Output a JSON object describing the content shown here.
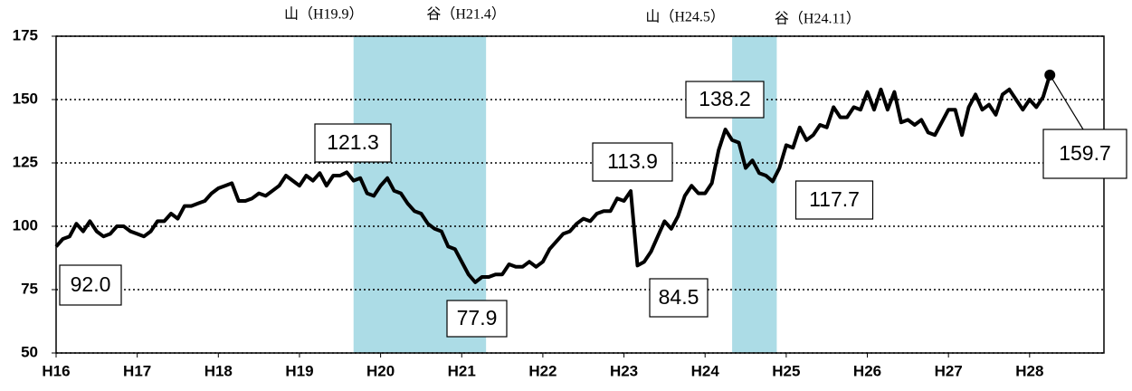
{
  "chart_data": {
    "type": "line",
    "categories": [
      "H16",
      null,
      null,
      null,
      null,
      null,
      null,
      null,
      null,
      null,
      null,
      null,
      "H17",
      null,
      null,
      null,
      null,
      null,
      null,
      null,
      null,
      null,
      null,
      null,
      "H18",
      null,
      null,
      null,
      null,
      null,
      null,
      null,
      null,
      null,
      null,
      null,
      "H19",
      null,
      null,
      null,
      null,
      null,
      null,
      null,
      null,
      null,
      null,
      null,
      "H20",
      null,
      null,
      null,
      null,
      null,
      null,
      null,
      null,
      null,
      null,
      null,
      "H21",
      null,
      null,
      null,
      null,
      null,
      null,
      null,
      null,
      null,
      null,
      null,
      "H22",
      null,
      null,
      null,
      null,
      null,
      null,
      null,
      null,
      null,
      null,
      null,
      "H23",
      null,
      null,
      null,
      null,
      null,
      null,
      null,
      null,
      null,
      null,
      null,
      "H24",
      null,
      null,
      null,
      null,
      null,
      null,
      null,
      null,
      null,
      null,
      null,
      "H25",
      null,
      null,
      null,
      null,
      null,
      null,
      null,
      null,
      null,
      null,
      null,
      "H26",
      null,
      null,
      null,
      null,
      null,
      null,
      null,
      null,
      null,
      null,
      null,
      "H27",
      null,
      null,
      null,
      null,
      null,
      null,
      null,
      null,
      null,
      null,
      null,
      "H28",
      null,
      null,
      null
    ],
    "values": [
      92,
      95,
      96,
      101,
      98,
      102,
      98,
      96,
      97,
      100,
      100,
      98,
      97,
      96,
      98,
      102,
      102,
      105,
      103,
      108,
      108,
      109,
      110,
      113,
      115,
      116,
      117,
      110,
      110,
      111,
      113,
      112,
      114,
      116,
      120,
      118,
      116,
      120,
      118,
      121,
      116,
      120,
      120,
      121.3,
      118,
      119,
      113,
      112,
      116,
      119,
      114,
      113,
      109,
      106,
      105,
      101,
      99,
      98,
      92,
      91,
      86,
      81,
      77.9,
      80,
      80,
      81,
      81,
      85,
      84,
      84,
      86,
      84,
      86,
      91,
      94,
      97,
      98,
      101,
      103,
      102,
      105,
      106,
      106,
      111,
      110,
      113.9,
      84.5,
      86,
      90,
      96,
      102,
      99,
      104,
      112,
      116,
      113,
      113,
      117,
      130,
      138.2,
      134,
      133,
      123,
      126,
      121,
      120,
      117.7,
      123,
      132,
      131,
      139,
      134,
      136,
      140,
      139,
      147,
      143,
      143,
      147,
      146,
      153,
      146,
      154,
      146,
      153,
      141,
      142,
      140,
      142,
      137,
      136,
      141,
      146,
      146,
      136,
      147,
      152,
      146,
      148,
      144,
      152,
      154,
      150,
      146,
      150,
      147,
      151,
      159.7
    ],
    "value_labels": {
      "0": "92.0",
      "43": "121.3",
      "62": "77.9",
      "85": "113.9",
      "86": "84.5",
      "99": "138.2",
      "106": "117.7",
      "147": "159.7"
    },
    "color": "#000000",
    "ylim": [
      50,
      175
    ],
    "yticks": [
      50,
      75,
      100,
      125,
      150,
      175
    ],
    "grid": true,
    "shade_color": "#acdce6",
    "periods": [
      {
        "start_label": "山（H19.9）",
        "end_label": "谷（H21.4）"
      },
      {
        "start_label": "山（H24.5）",
        "end_label": "谷（H24.11）"
      }
    ]
  }
}
